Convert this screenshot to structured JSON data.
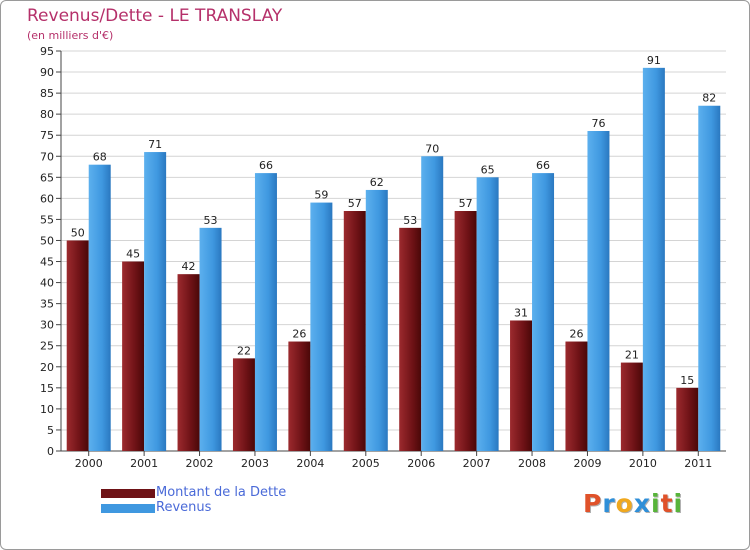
{
  "header": {
    "title": "Revenus/Dette - LE TRANSLAY",
    "subtitle": "(en milliers d'€)"
  },
  "chart_data": {
    "type": "bar",
    "title": "Revenus/Dette - LE TRANSLAY",
    "subtitle": "(en milliers d'€)",
    "categories": [
      "2000",
      "2001",
      "2002",
      "2003",
      "2004",
      "2005",
      "2006",
      "2007",
      "2008",
      "2009",
      "2010",
      "2011"
    ],
    "series": [
      {
        "name": "Montant de la Dette",
        "color": "#7a1418",
        "values": [
          50,
          45,
          42,
          22,
          26,
          57,
          53,
          57,
          31,
          26,
          21,
          15
        ]
      },
      {
        "name": "Revenus",
        "color": "#3f98e0",
        "values": [
          68,
          71,
          53,
          66,
          59,
          62,
          70,
          65,
          66,
          76,
          91,
          82
        ]
      }
    ],
    "ylim": [
      0,
      95
    ],
    "yticks": [
      0,
      5,
      10,
      15,
      20,
      25,
      30,
      35,
      40,
      45,
      50,
      55,
      60,
      65,
      70,
      75,
      80,
      85,
      90,
      95
    ],
    "grid": true,
    "legend": "bottom-left"
  },
  "legend": {
    "items": [
      {
        "label": "Montant de la Dette",
        "color": "#7a1418"
      },
      {
        "label": "Revenus",
        "color": "#3f98e0"
      }
    ]
  },
  "logo": {
    "letters": [
      "P",
      "r",
      "o",
      "x",
      "i",
      "t",
      "i"
    ],
    "colors": [
      "#e0522a",
      "#2f8fd8",
      "#f0a81e",
      "#2f8fd8",
      "#58b43a",
      "#e0522a",
      "#58b43a"
    ]
  }
}
